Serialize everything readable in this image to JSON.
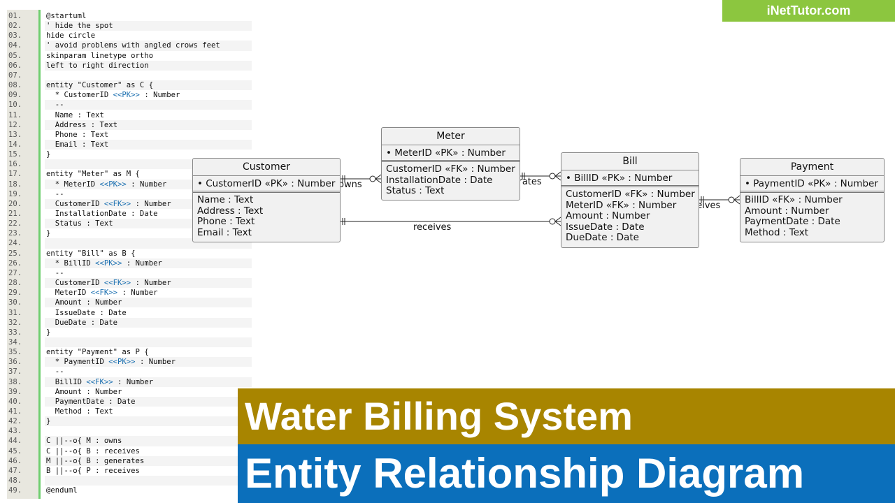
{
  "code_lines": [
    "@startuml",
    "' hide the spot",
    "hide circle",
    "' avoid problems with angled crows feet",
    "skinparam linetype ortho",
    "left to right direction",
    "",
    "entity \"Customer\" as C {",
    "  * CustomerID <<PK>> : Number",
    "  --",
    "  Name : Text",
    "  Address : Text",
    "  Phone : Text",
    "  Email : Text",
    "}",
    "",
    "entity \"Meter\" as M {",
    "  * MeterID <<PK>> : Number",
    "  --",
    "  CustomerID <<FK>> : Number",
    "  InstallationDate : Date",
    "  Status : Text",
    "}",
    "",
    "entity \"Bill\" as B {",
    "  * BillID <<PK>> : Number",
    "  --",
    "  CustomerID <<FK>> : Number",
    "  MeterID <<FK>> : Number",
    "  Amount : Number",
    "  IssueDate : Date",
    "  DueDate : Date",
    "}",
    "",
    "entity \"Payment\" as P {",
    "  * PaymentID <<PK>> : Number",
    "  --",
    "  BillID <<FK>> : Number",
    "  Amount : Number",
    "  PaymentDate : Date",
    "  Method : Text",
    "}",
    "",
    "C ||--o{ M : owns",
    "C ||--o{ B : receives",
    "M ||--o{ B : generates",
    "B ||--o{ P : receives",
    "",
    "@enduml"
  ],
  "entities": {
    "customer": {
      "name": "Customer",
      "pk": "• CustomerID «PK» : Number",
      "attrs": [
        "Name : Text",
        "Address : Text",
        "Phone : Text",
        "Email : Text"
      ]
    },
    "meter": {
      "name": "Meter",
      "pk": "• MeterID «PK» : Number",
      "attrs": [
        "CustomerID «FK» : Number",
        "InstallationDate : Date",
        "Status : Text"
      ]
    },
    "bill": {
      "name": "Bill",
      "pk": "• BillID «PK» : Number",
      "attrs": [
        "CustomerID «FK» : Number",
        "MeterID «FK» : Number",
        "Amount : Number",
        "IssueDate : Date",
        "DueDate : Date"
      ]
    },
    "payment": {
      "name": "Payment",
      "pk": "• PaymentID «PK» : Number",
      "attrs": [
        "BillID «FK» : Number",
        "Amount : Number",
        "PaymentDate : Date",
        "Method : Text"
      ]
    }
  },
  "relations": {
    "owns": "owns",
    "generates": "generates",
    "receives_cb": "receives",
    "receives_bp": "receives"
  },
  "logo": "iNetTutor.com",
  "banner": {
    "title": "Water Billing System",
    "subtitle": "Entity Relationship Diagram"
  },
  "colors": {
    "keyword": "#1a6fb0",
    "banner_gold": "#a88500",
    "banner_blue": "#0b6fbb",
    "logo_green": "#8cc63f"
  }
}
